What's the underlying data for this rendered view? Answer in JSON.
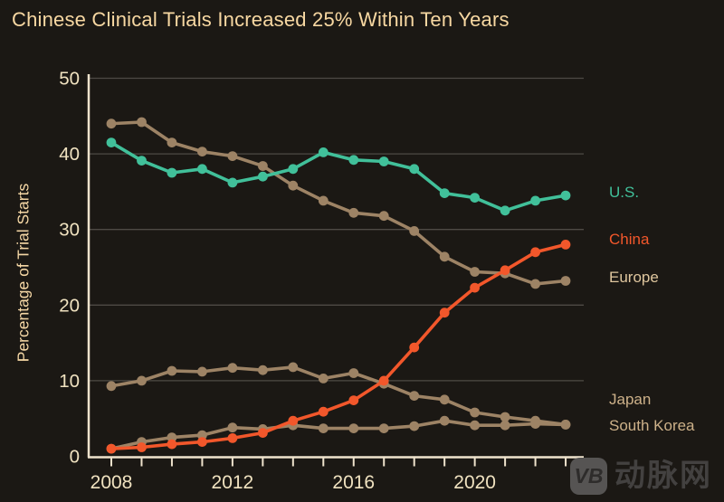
{
  "title": "Chinese Clinical Trials Increased 25% Within Ten Years",
  "y_axis_label": "Percentage of Trial Starts",
  "watermark": {
    "logo": "VB",
    "text": "动脉网"
  },
  "colors": {
    "background": "#1b1814",
    "title_text": "#f8d8a2",
    "axis_line": "#efe3cd",
    "tick_label": "#f0e2c0",
    "gridline": "#4e4a45",
    "us": "#41c09a",
    "china": "#f2572b",
    "europe_japan_korea_line": "#9d8365",
    "europe_label": "#dfc69e",
    "japan_korea_label": "#cdb189"
  },
  "chart_data": {
    "type": "line",
    "title": "Chinese Clinical Trials Increased 25% Within Ten Years",
    "xlabel": "",
    "ylabel": "Percentage of Trial Starts",
    "x": [
      2008,
      2009,
      2010,
      2011,
      2012,
      2013,
      2014,
      2015,
      2016,
      2017,
      2018,
      2019,
      2020,
      2021,
      2022,
      2023
    ],
    "x_tick_labels": [
      "2008",
      "2012",
      "2016",
      "2020"
    ],
    "y_ticks": [
      0,
      10,
      20,
      30,
      40,
      50
    ],
    "ylim": [
      0,
      50
    ],
    "grid": "horizontal",
    "legend_position": "right",
    "series": [
      {
        "name": "U.S.",
        "color": "#41c09a",
        "label_color": "#41c09a",
        "values": [
          41.5,
          39.1,
          37.5,
          38.0,
          36.2,
          37.0,
          38.0,
          40.2,
          39.2,
          39.0,
          38.0,
          34.8,
          34.2,
          32.5,
          33.8,
          34.5
        ]
      },
      {
        "name": "China",
        "color": "#f2572b",
        "label_color": "#f2572b",
        "values": [
          1.0,
          1.2,
          1.6,
          1.9,
          2.4,
          3.1,
          4.7,
          5.9,
          7.4,
          10.0,
          14.4,
          19.0,
          22.3,
          24.6,
          27.0,
          28.0
        ]
      },
      {
        "name": "Europe",
        "color": "#9d8365",
        "label_color": "#dfc69e",
        "values": [
          44.0,
          44.2,
          41.5,
          40.3,
          39.7,
          38.4,
          35.8,
          33.8,
          32.2,
          31.8,
          29.8,
          26.4,
          24.4,
          24.2,
          22.8,
          23.2
        ]
      },
      {
        "name": "Japan",
        "color": "#9d8365",
        "label_color": "#cdb189",
        "values": [
          9.3,
          10.0,
          11.3,
          11.2,
          11.7,
          11.4,
          11.8,
          10.3,
          11.0,
          9.6,
          8.0,
          7.5,
          5.8,
          5.2,
          4.7,
          4.2
        ]
      },
      {
        "name": "South Korea",
        "color": "#9d8365",
        "label_color": "#cdb189",
        "values": [
          1.0,
          1.9,
          2.5,
          2.8,
          3.8,
          3.6,
          4.1,
          3.7,
          3.7,
          3.7,
          4.0,
          4.7,
          4.1,
          4.1,
          4.3,
          4.2
        ]
      }
    ]
  }
}
